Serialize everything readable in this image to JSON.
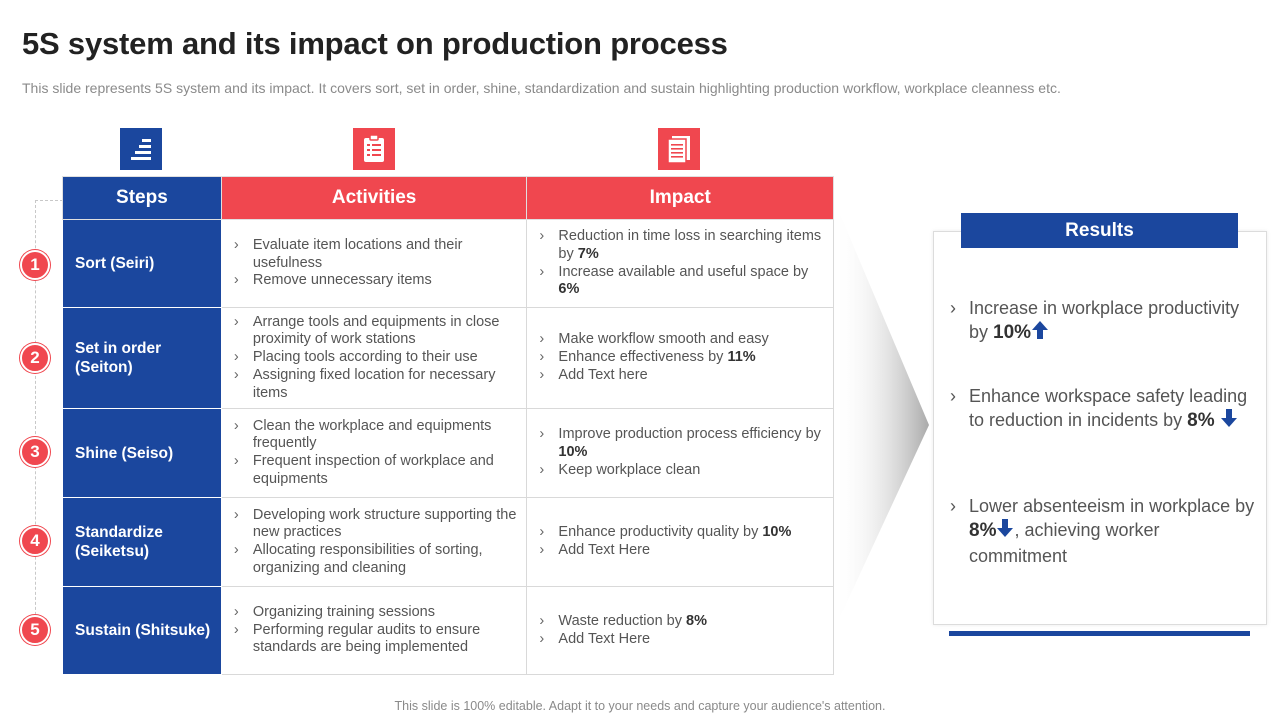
{
  "title": "5S system and its impact on production process",
  "subtitle": "This slide represents 5S system and its impact. It covers sort, set in order, shine, standardization and sustain highlighting  production workflow, workplace cleanness etc.",
  "icons": [
    "stairs-icon",
    "clipboard-icon",
    "document-icon"
  ],
  "headers": {
    "steps": "Steps",
    "activities": "Activities",
    "impact": "Impact"
  },
  "rows": [
    {
      "num": "1",
      "step": "Sort (Seiri)",
      "activities": [
        "Evaluate item locations and their usefulness",
        "Remove unnecessary items"
      ],
      "impact": [
        {
          "text": "Reduction in time loss in searching items by ",
          "bold": "7%"
        },
        {
          "text": "Increase available and useful space by ",
          "bold": "6%"
        }
      ]
    },
    {
      "num": "2",
      "step": "Set in order (Seiton)",
      "activities": [
        "Arrange tools and equipments in close proximity of work stations",
        "Placing tools according to their use",
        "Assigning fixed location for necessary items"
      ],
      "impact": [
        {
          "text": "Make workflow smooth and easy",
          "bold": ""
        },
        {
          "text": "Enhance effectiveness by ",
          "bold": "11%"
        },
        {
          "text": "Add Text here",
          "bold": ""
        }
      ]
    },
    {
      "num": "3",
      "step": "Shine (Seiso)",
      "activities": [
        "Clean the workplace and equipments frequently",
        "Frequent inspection of workplace and equipments"
      ],
      "impact": [
        {
          "text": "Improve production process efficiency by ",
          "bold": "10%"
        },
        {
          "text": "Keep workplace clean",
          "bold": ""
        }
      ]
    },
    {
      "num": "4",
      "step": "Standardize (Seiketsu)",
      "activities": [
        "Developing work structure supporting the new practices",
        "Allocating responsibilities of sorting, organizing and cleaning"
      ],
      "impact": [
        {
          "text": "Enhance productivity quality  by ",
          "bold": "10%"
        },
        {
          "text": "Add Text Here",
          "bold": ""
        }
      ]
    },
    {
      "num": "5",
      "step": "Sustain (Shitsuke)",
      "activities": [
        "Organizing training sessions",
        "Performing regular audits to ensure standards are being implemented"
      ],
      "impact": [
        {
          "text": "Waste reduction by ",
          "bold": "8%"
        },
        {
          "text": "Add Text Here",
          "bold": ""
        }
      ]
    }
  ],
  "results": {
    "title": "Results",
    "items": [
      {
        "text": "Increase in workplace productivity by ",
        "bold": "10%",
        "after": "",
        "arrow": "up"
      },
      {
        "text": "Enhance workspace safety leading to reduction in incidents by ",
        "bold": "8%",
        "after": "",
        "arrow": "down"
      },
      {
        "text": "Lower absenteeism in workplace by ",
        "bold": "8%",
        "after": ", achieving worker commitment",
        "arrow": "down"
      }
    ]
  },
  "colors": {
    "blue": "#1b479e",
    "red": "#f0474f"
  },
  "footer": "This slide is 100% editable. Adapt it to your needs and capture your audience's attention."
}
